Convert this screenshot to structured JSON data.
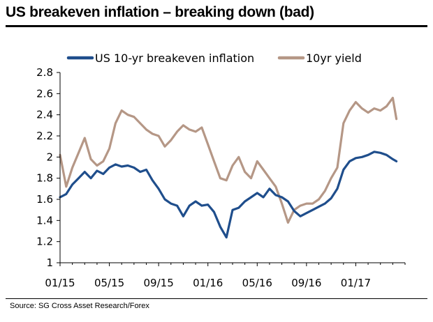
{
  "title": "US breakeven inflation – breaking down (bad)",
  "source": "Source: SG Cross Asset Research/Forex",
  "chart_data": {
    "type": "line",
    "title": "US breakeven inflation – breaking down (bad)",
    "xlabel": "",
    "ylabel": "",
    "ylim": [
      1,
      2.8
    ],
    "yticks": [
      "2.8",
      "2.6",
      "2.4",
      "2.2",
      "2",
      "1.8",
      "1.6",
      "1.4",
      "1.2",
      "1"
    ],
    "yvalues": [
      2.8,
      2.6,
      2.4,
      2.2,
      2.0,
      1.8,
      1.6,
      1.4,
      1.2,
      1.0
    ],
    "xticks": [
      "01/15",
      "05/15",
      "09/15",
      "01/16",
      "05/16",
      "09/16",
      "01/17"
    ],
    "xtick_months": [
      0,
      4,
      8,
      12,
      16,
      20,
      24
    ],
    "xlim_months": [
      0,
      28
    ],
    "grid": false,
    "legend_position": "top",
    "series": [
      {
        "name": "US 10-yr breakeven inflation",
        "color": "#1f4e8c",
        "x": [
          0,
          0.5,
          1,
          1.5,
          2,
          2.5,
          3,
          3.5,
          4,
          4.5,
          5,
          5.5,
          6,
          6.5,
          7,
          7.5,
          8,
          8.5,
          9,
          9.5,
          10,
          10.5,
          11,
          11.5,
          12,
          12.5,
          13,
          13.5,
          14,
          14.5,
          15,
          15.5,
          16,
          16.5,
          17,
          17.5,
          18,
          18.5,
          19,
          19.5,
          20,
          20.5,
          21,
          21.5,
          22,
          22.5,
          23,
          23.5,
          24,
          24.5,
          25,
          25.5,
          26,
          26.5,
          27,
          27.3
        ],
        "values": [
          1.62,
          1.65,
          1.74,
          1.8,
          1.86,
          1.8,
          1.87,
          1.84,
          1.9,
          1.93,
          1.91,
          1.92,
          1.9,
          1.86,
          1.88,
          1.78,
          1.7,
          1.6,
          1.56,
          1.54,
          1.44,
          1.54,
          1.58,
          1.54,
          1.55,
          1.48,
          1.34,
          1.24,
          1.5,
          1.52,
          1.58,
          1.62,
          1.66,
          1.62,
          1.7,
          1.64,
          1.62,
          1.58,
          1.49,
          1.44,
          1.47,
          1.5,
          1.53,
          1.56,
          1.61,
          1.7,
          1.88,
          1.96,
          1.99,
          2.0,
          2.02,
          2.05,
          2.04,
          2.02,
          1.98,
          1.96
        ]
      },
      {
        "name": "10yr yield",
        "color": "#b59786",
        "x": [
          0,
          0.5,
          1,
          1.5,
          2,
          2.5,
          3,
          3.5,
          4,
          4.5,
          5,
          5.5,
          6,
          6.5,
          7,
          7.5,
          8,
          8.5,
          9,
          9.5,
          10,
          10.5,
          11,
          11.5,
          12,
          12.5,
          13,
          13.5,
          14,
          14.5,
          15,
          15.5,
          16,
          16.5,
          17,
          17.5,
          18,
          18.5,
          19,
          19.5,
          20,
          20.5,
          21,
          21.5,
          22,
          22.5,
          23,
          23.5,
          24,
          24.5,
          25,
          25.5,
          26,
          26.5,
          27,
          27.3
        ],
        "values": [
          2.02,
          1.72,
          1.9,
          2.04,
          2.18,
          1.98,
          1.92,
          1.96,
          2.08,
          2.32,
          2.44,
          2.4,
          2.38,
          2.32,
          2.26,
          2.22,
          2.2,
          2.1,
          2.16,
          2.24,
          2.3,
          2.26,
          2.24,
          2.28,
          2.12,
          1.96,
          1.8,
          1.78,
          1.92,
          2.0,
          1.86,
          1.8,
          1.96,
          1.88,
          1.8,
          1.72,
          1.56,
          1.38,
          1.5,
          1.54,
          1.56,
          1.56,
          1.6,
          1.68,
          1.8,
          1.9,
          2.32,
          2.44,
          2.52,
          2.46,
          2.42,
          2.46,
          2.44,
          2.48,
          2.56,
          2.36
        ]
      }
    ]
  }
}
